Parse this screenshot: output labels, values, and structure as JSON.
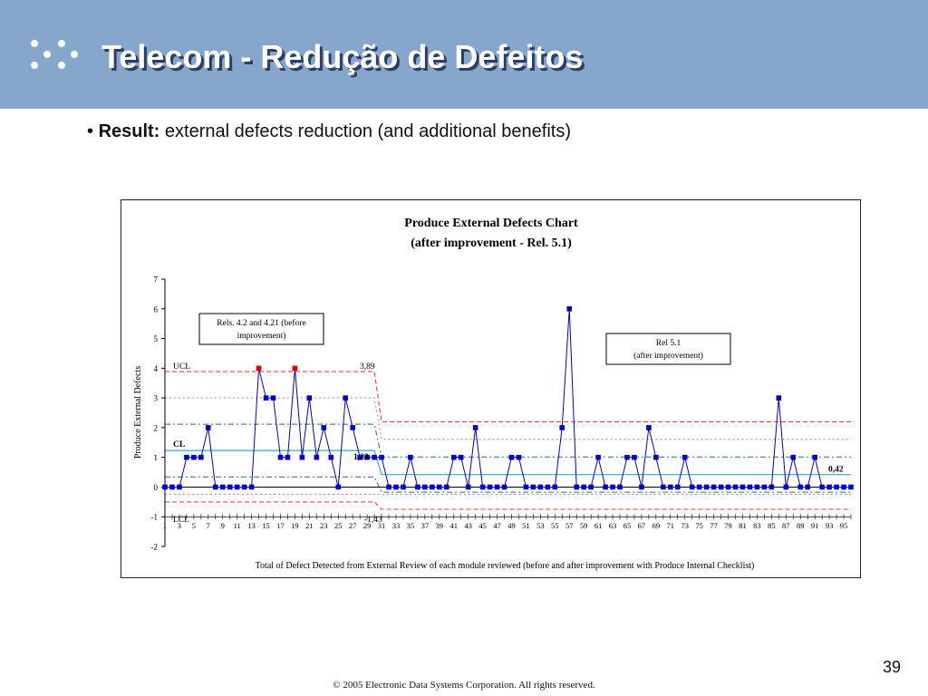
{
  "header": {
    "title": "Telecom  - Redução de Defeitos",
    "icon": "four-dots-icon"
  },
  "bullet": {
    "label": "Result:",
    "text": " external defects reduction (and additional benefits)"
  },
  "chart_data": {
    "type": "line",
    "title": "Produce External Defects Chart",
    "subtitle": "(after improvement - Rel. 5.1)",
    "xlabel": "Total of Defect Detected from External Review of each module reviewed (before and after improvement with Produce Internal Checklist)",
    "ylabel": "Produce External Defects",
    "ylim": [
      -2,
      7
    ],
    "yticks": [
      -2,
      -1,
      0,
      1,
      2,
      3,
      4,
      5,
      6,
      7
    ],
    "x_tick_labels": [
      "1",
      "3",
      "5",
      "7",
      "9",
      "11",
      "13",
      "15",
      "17",
      "19",
      "21",
      "23",
      "25",
      "27",
      "29",
      "31",
      "33",
      "35",
      "37",
      "39",
      "41",
      "43",
      "45",
      "47",
      "49",
      "51",
      "53",
      "55",
      "57",
      "59",
      "61",
      "63",
      "65",
      "67",
      "69",
      "71",
      "73",
      "75",
      "77",
      "79",
      "81",
      "83",
      "85",
      "87",
      "89",
      "91",
      "93",
      "95"
    ],
    "series": [
      {
        "color": "#0000cc",
        "values": [
          0,
          0,
          0,
          1,
          1,
          1,
          2,
          0,
          0,
          0,
          0,
          0,
          0,
          4,
          3,
          3,
          1,
          1,
          4,
          1,
          3,
          1,
          2,
          1,
          0,
          3,
          2,
          1,
          1,
          1,
          1,
          0,
          0,
          0,
          1,
          0,
          0,
          0,
          0,
          0,
          1,
          1,
          0,
          2,
          0,
          0,
          0,
          0,
          1,
          1,
          0,
          0,
          0,
          0,
          0,
          2,
          6,
          0,
          0,
          0,
          1,
          0,
          0,
          0,
          1,
          1,
          0,
          2,
          1,
          0,
          0,
          0,
          1,
          0,
          0,
          0,
          0,
          0,
          0,
          0,
          0,
          0,
          0,
          0,
          0,
          3,
          0,
          1,
          0,
          0,
          1,
          0,
          0,
          0,
          0,
          0
        ],
        "highlight_points": [
          14,
          19
        ],
        "highlight_color": "#dd0000"
      }
    ],
    "phases": [
      {
        "name": "before",
        "x_start": 1,
        "x_end": 30,
        "ucl": 3.89,
        "ucl_label": "3,89",
        "cl": 1.23,
        "cl_label": "1,23",
        "lcl_label": "-1,43"
      },
      {
        "name": "after",
        "x_start": 31,
        "x_end": 96,
        "ucl": 2.2,
        "cl": 0.42,
        "cl_label": "0,42"
      }
    ],
    "line_labels": {
      "ucl": "UCL",
      "cl": "CL",
      "lcl": "LCL"
    },
    "annotations": [
      {
        "text": "Rels. 4.2 and 4.21 (before",
        "text2": "improvement)"
      },
      {
        "text": "Rel 5.1",
        "text2": "(after improvement)"
      }
    ],
    "colors": {
      "ucl": "#e03030",
      "cl": "#36a8c8",
      "lcl": "#d04040",
      "sigma": "#e07070",
      "sigma_cl": "#2a6a7a"
    }
  },
  "page_number": "39",
  "footer": "© 2005 Electronic Data Systems Corporation. All rights reserved."
}
